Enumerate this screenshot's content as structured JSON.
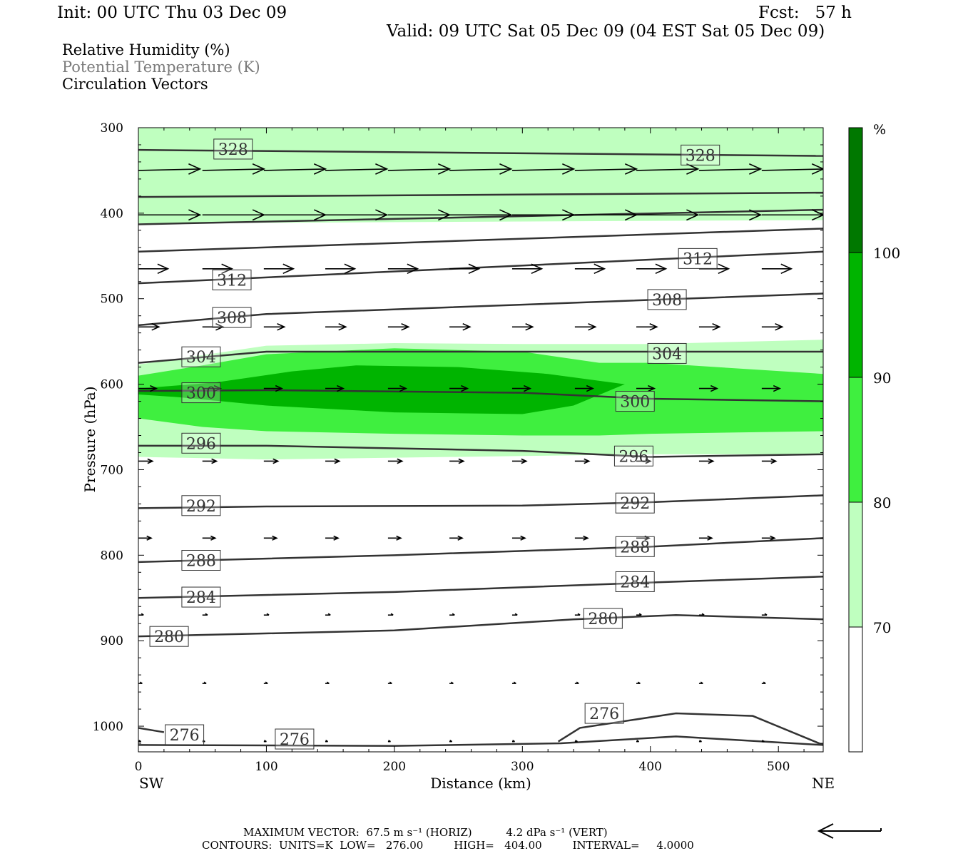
{
  "header": {
    "init": "Init: 00 UTC Thu 03 Dec 09",
    "fcst": "Fcst:   57 h",
    "valid": "Valid: 09 UTC Sat 05 Dec 09 (04 EST Sat 05 Dec 09)",
    "fields": [
      "Relative Humidity (%)",
      "Potential Temperature (K)",
      "Circulation Vectors"
    ]
  },
  "colors": {
    "rh70": "#bfffbf",
    "rh80": "#3fef3f",
    "rh90": "#00b400",
    "rh100": "#007800",
    "contour": "#333333",
    "gray_text": "#7a7a7a"
  },
  "chart_data": {
    "type": "cross-section",
    "xlabel": "Distance (km)",
    "ylabel": "Pressure (hPa)",
    "xlim": [
      0,
      535
    ],
    "ylim": [
      300,
      1030
    ],
    "x_ticks": [
      "0",
      "100",
      "200",
      "300",
      "400",
      "500"
    ],
    "x_tick_values": [
      0,
      100,
      200,
      300,
      400,
      500
    ],
    "y_ticks": [
      "300",
      "400",
      "500",
      "600",
      "700",
      "800",
      "900",
      "1000"
    ],
    "y_tick_values": [
      300,
      400,
      500,
      600,
      700,
      800,
      900,
      1000
    ],
    "left_label": "SW",
    "right_label": "NE",
    "colorbar": {
      "unit": "%",
      "levels": [
        "70",
        "80",
        "90",
        "100"
      ],
      "level_values": [
        70,
        80,
        90,
        100
      ],
      "colors": [
        "#ffffff",
        "#bfffbf",
        "#3fef3f",
        "#00b400",
        "#007800"
      ]
    },
    "rh_regions": [
      {
        "level": 70,
        "x": [
          0,
          535
        ],
        "top": [
          300,
          300
        ],
        "bottom": [
          412,
          408
        ]
      },
      {
        "level": 70,
        "x": [
          0,
          100,
          200,
          300,
          400,
          535
        ],
        "top": [
          577,
          555,
          552,
          553,
          553,
          548
        ],
        "bottom": [
          685,
          688,
          686,
          684,
          682,
          682
        ]
      },
      {
        "level": 80,
        "x": [
          0,
          50,
          100,
          200,
          300,
          360,
          400,
          535
        ],
        "top": [
          590,
          578,
          565,
          558,
          562,
          575,
          575,
          588
        ],
        "bottom": [
          640,
          650,
          655,
          658,
          660,
          660,
          658,
          655
        ]
      },
      {
        "level": 90,
        "x": [
          0,
          60,
          120,
          170,
          250,
          320,
          380,
          340,
          300,
          200,
          100,
          30,
          0
        ],
        "p": [
          605,
          598,
          585,
          578,
          580,
          588,
          600,
          625,
          635,
          633,
          625,
          615,
          612
        ]
      }
    ],
    "isentropes": [
      {
        "theta": 328,
        "x": [
          0,
          535
        ],
        "p": [
          326,
          333
        ],
        "labels": [
          [
            74,
            325
          ],
          [
            439,
            332
          ]
        ]
      },
      {
        "theta": 324,
        "x": [
          0,
          535
        ],
        "p": [
          381,
          376
        ],
        "labels": []
      },
      {
        "theta": 320,
        "x": [
          0,
          535
        ],
        "p": [
          413,
          396
        ],
        "labels": []
      },
      {
        "theta": 316,
        "x": [
          0,
          535
        ],
        "p": [
          445,
          418
        ],
        "labels": []
      },
      {
        "theta": 312,
        "x": [
          0,
          535
        ],
        "p": [
          482,
          445
        ],
        "labels": [
          [
            73,
            478
          ],
          [
            437,
            453
          ]
        ]
      },
      {
        "theta": 308,
        "x": [
          0,
          100,
          535
        ],
        "p": [
          531,
          518,
          494
        ],
        "labels": [
          [
            73,
            522
          ],
          [
            413,
            501
          ]
        ]
      },
      {
        "theta": 304,
        "x": [
          0,
          100,
          535
        ],
        "p": [
          575,
          562,
          562
        ],
        "labels": [
          [
            49,
            568
          ],
          [
            413,
            564
          ]
        ]
      },
      {
        "theta": 300,
        "x": [
          0,
          100,
          300,
          400,
          535
        ],
        "p": [
          608,
          607,
          610,
          617,
          620
        ],
        "labels": [
          [
            49,
            610
          ],
          [
            388,
            620
          ]
        ]
      },
      {
        "theta": 296,
        "x": [
          0,
          100,
          300,
          400,
          535
        ],
        "p": [
          672,
          672,
          678,
          685,
          682
        ],
        "labels": [
          [
            49,
            669
          ],
          [
            387,
            684
          ]
        ]
      },
      {
        "theta": 292,
        "x": [
          0,
          100,
          300,
          400,
          535
        ],
        "p": [
          745,
          743,
          742,
          738,
          730
        ],
        "labels": [
          [
            49,
            742
          ],
          [
            388,
            739
          ]
        ]
      },
      {
        "theta": 288,
        "x": [
          0,
          200,
          300,
          400,
          535
        ],
        "p": [
          808,
          800,
          795,
          790,
          780
        ],
        "labels": [
          [
            49,
            806
          ],
          [
            388,
            790
          ]
        ]
      },
      {
        "theta": 284,
        "x": [
          0,
          200,
          400,
          535
        ],
        "p": [
          850,
          843,
          832,
          825
        ],
        "labels": [
          [
            49,
            849
          ],
          [
            388,
            831
          ]
        ]
      },
      {
        "theta": 280,
        "x": [
          0,
          200,
          340,
          420,
          535
        ],
        "p": [
          895,
          888,
          875,
          870,
          875
        ],
        "labels": [
          [
            24,
            895
          ],
          [
            363,
            874
          ]
        ]
      },
      {
        "theta": 276,
        "x": [
          0,
          20
        ],
        "p": [
          1002,
          1007
        ],
        "labels": [
          [
            36,
            1010
          ],
          [
            122,
            1015
          ]
        ]
      },
      {
        "theta": 276,
        "x": [
          328,
          345,
          420,
          480,
          535
        ],
        "p": [
          1018,
          1002,
          985,
          988,
          1022
        ],
        "labels": [
          [
            364,
            985
          ]
        ]
      },
      {
        "theta": 276,
        "x": [
          0,
          200,
          330,
          420,
          535
        ],
        "p": [
          1022,
          1023,
          1020,
          1012,
          1022
        ],
        "labels": []
      }
    ],
    "vectors": {
      "x": [
        0,
        50,
        98,
        146,
        195,
        243,
        292,
        341,
        389,
        438,
        487
      ],
      "rows": [
        {
          "p": 350,
          "u": 48,
          "w": 1
        },
        {
          "p": 402,
          "u": 48,
          "w": 0
        },
        {
          "p": 465,
          "u": 23,
          "w": 0
        },
        {
          "p": 533,
          "u": 16,
          "w": 0
        },
        {
          "p": 605,
          "u": 14,
          "w": 0
        },
        {
          "p": 690,
          "u": 11,
          "w": 0
        },
        {
          "p": 780,
          "u": 10,
          "w": 0
        },
        {
          "p": 870,
          "u": 4,
          "w": 0
        },
        {
          "p": 950,
          "u": 3,
          "w": 0
        },
        {
          "p": 1018,
          "u": 2,
          "w": 0
        }
      ]
    }
  },
  "footer": {
    "max_vector": "MAXIMUM VECTOR:  67.5 m s⁻¹ (HORIZ)          4.2 dPa s⁻¹ (VERT)",
    "contours": "CONTOURS:  UNITS=K  LOW=   276.00         HIGH=   404.00         INTERVAL=     4.0000"
  }
}
